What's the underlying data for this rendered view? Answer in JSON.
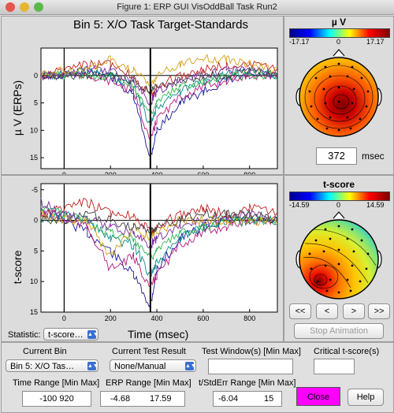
{
  "window": {
    "title": "Figure 1: ERP GUI VisOddBall Task Run2"
  },
  "top_plot": {
    "title": "Bin 5: X/O Task Target-Standards",
    "ylabel": "µ V (ERPs)",
    "yticks": [
      "0",
      "5",
      "10",
      "15"
    ],
    "xticks": [
      "0",
      "200",
      "400",
      "600",
      "800"
    ]
  },
  "bottom_plot": {
    "ylabel": "t-score",
    "yticks": [
      "-5",
      "0",
      "5",
      "10",
      "15"
    ],
    "xticks": [
      "0",
      "200",
      "400",
      "600",
      "800"
    ],
    "xlabel": "Time (msec)"
  },
  "chart_data": [
    {
      "type": "line",
      "title": "Bin 5: X/O Task Target-Standards",
      "ylabel": "µ V (ERPs)",
      "xlabel": "",
      "x": [
        -100,
        0,
        100,
        200,
        300,
        372,
        400,
        500,
        600,
        700,
        800,
        920
      ],
      "xlim": [
        -100,
        920
      ],
      "ylim": [
        -5,
        17
      ],
      "y_reversed": true,
      "series": [
        {
          "values": [
            0,
            0,
            -1,
            0,
            4,
            15,
            10,
            5,
            3,
            1,
            0,
            0
          ],
          "color": "#1a1a9a"
        },
        {
          "values": [
            0,
            0,
            0,
            1,
            3,
            12,
            8,
            4,
            2,
            1,
            0,
            0
          ],
          "color": "#b3187a"
        },
        {
          "values": [
            0,
            0,
            -1,
            0,
            2,
            9,
            6,
            3,
            1,
            0,
            -1,
            0
          ],
          "color": "#0a8a8a"
        },
        {
          "values": [
            0,
            0,
            0,
            0,
            2,
            7,
            5,
            2,
            1,
            0,
            0,
            0
          ],
          "color": "#2bb34a"
        },
        {
          "values": [
            0,
            -1,
            -2,
            -2,
            0,
            4,
            2,
            0,
            -1,
            -2,
            -2,
            -1
          ],
          "color": "#c02020"
        },
        {
          "values": [
            0,
            0,
            -1,
            -1,
            1,
            5,
            3,
            1,
            0,
            -1,
            -1,
            0
          ],
          "color": "#7a2aa0"
        },
        {
          "values": [
            0,
            0,
            0,
            0,
            1,
            3,
            2,
            1,
            0,
            0,
            -1,
            0
          ],
          "color": "#3c3c3c"
        },
        {
          "values": [
            0,
            -1,
            -1,
            -3,
            -1,
            2,
            0,
            -2,
            -3,
            -3,
            -2,
            -1
          ],
          "color": "#d4a017"
        }
      ],
      "cursor_x": 372
    },
    {
      "type": "line",
      "ylabel": "t-score",
      "xlabel": "Time (msec)",
      "x": [
        -100,
        0,
        100,
        200,
        300,
        372,
        400,
        500,
        600,
        700,
        800,
        920
      ],
      "xlim": [
        -100,
        920
      ],
      "ylim": [
        -6,
        15
      ],
      "y_reversed": true,
      "series": [
        {
          "values": [
            -2,
            0,
            2,
            5,
            9,
            14,
            8,
            3,
            1,
            0,
            0,
            0
          ],
          "color": "#1a1a9a"
        },
        {
          "values": [
            -1,
            0,
            1,
            8,
            6,
            11,
            9,
            4,
            2,
            1,
            0,
            0
          ],
          "color": "#b3187a"
        },
        {
          "values": [
            0,
            -1,
            0,
            3,
            4,
            9,
            7,
            3,
            1,
            0,
            0,
            0
          ],
          "color": "#0a8a8a"
        },
        {
          "values": [
            -2,
            -1,
            0,
            2,
            3,
            6,
            5,
            2,
            1,
            0,
            0,
            0
          ],
          "color": "#2bb34a"
        },
        {
          "values": [
            -1,
            -2,
            -3,
            -1,
            -1,
            2,
            1,
            -1,
            -2,
            -1,
            -2,
            -1
          ],
          "color": "#c02020"
        },
        {
          "values": [
            -3,
            -1,
            0,
            1,
            2,
            4,
            3,
            1,
            0,
            0,
            -1,
            0
          ],
          "color": "#7a2aa0"
        },
        {
          "values": [
            -1,
            0,
            0,
            6,
            1,
            3,
            2,
            0,
            0,
            0,
            0,
            0
          ],
          "color": "#d4a017"
        },
        {
          "values": [
            0,
            0,
            -1,
            0,
            1,
            2,
            1,
            0,
            -1,
            -1,
            -1,
            0
          ],
          "color": "#3c3c3c"
        }
      ],
      "cursor_x": 372
    }
  ],
  "topo_uv": {
    "title": "µ V",
    "min": "-17.17",
    "mid": "0",
    "max": "17.17"
  },
  "time_field": {
    "value": "372",
    "unit": "msec"
  },
  "topo_t": {
    "title": "t-score",
    "min": "-14.59",
    "mid": "0",
    "max": "14.59"
  },
  "nav": {
    "first": "<<",
    "prev": "<",
    "next": ">",
    "last": ">>",
    "stop": "Stop Animation"
  },
  "statistic": {
    "label": "Statistic:",
    "value": "t-score…"
  },
  "controls": {
    "current_bin_label": "Current Bin",
    "current_bin_value": "Bin 5: X/O Tas…",
    "current_test_label": "Current Test Result",
    "current_test_value": "None/Manual",
    "test_window_label": "Test Window(s) [Min Max]",
    "test_window_value": "",
    "critical_label": "Critical t-score(s)",
    "critical_value": "",
    "time_range_label": "Time Range [Min Max]",
    "time_range_value": "-100  920",
    "erp_range_label": "ERP Range [Min Max]",
    "erp_min": "-4.68",
    "erp_max": "17.59",
    "tstd_label": "t/StdErr Range [Min Max]",
    "tstd_min": "-6.04",
    "tstd_max": "15",
    "close": "Close",
    "help": "Help"
  },
  "colors": {
    "close_button": "#ff00ff",
    "window_bg": "#e2e2e2"
  }
}
